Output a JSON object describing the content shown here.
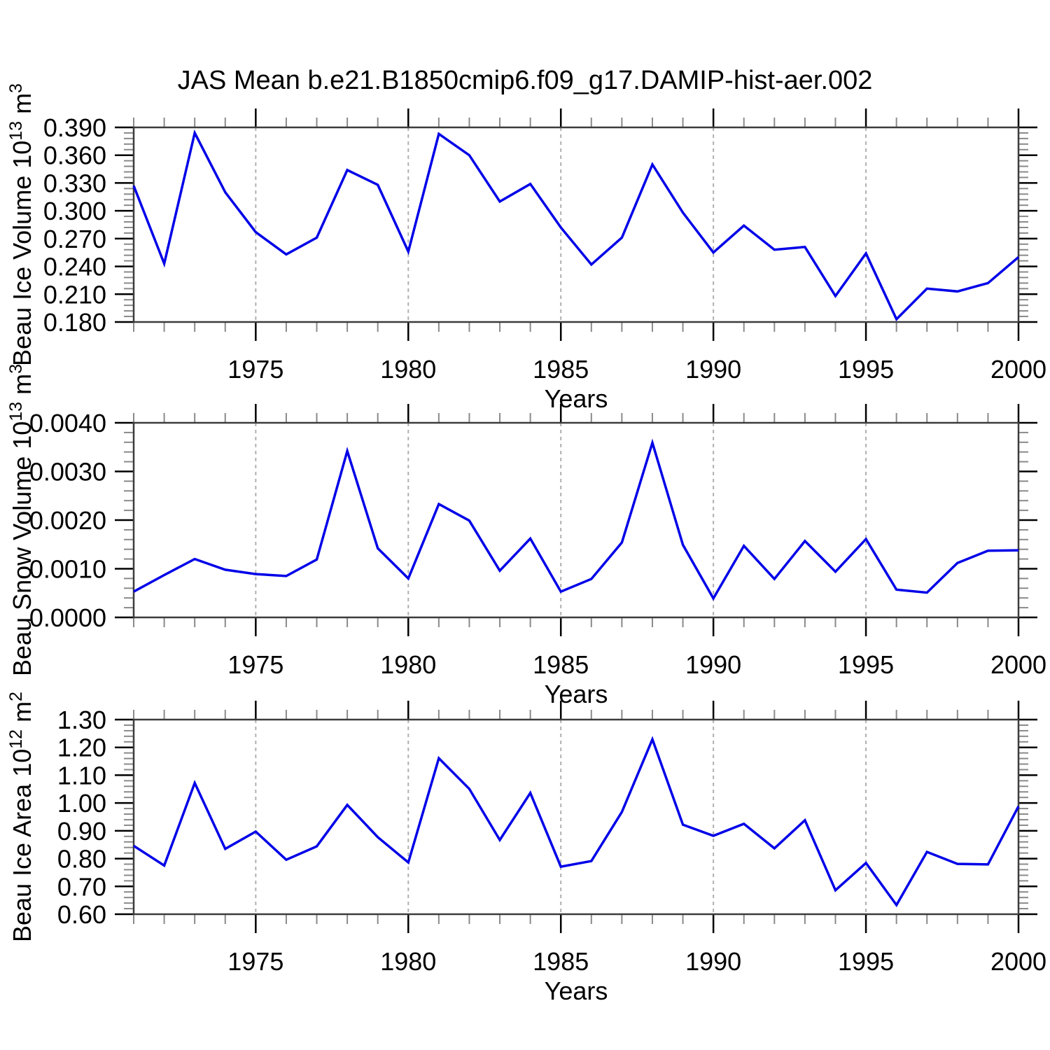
{
  "title": "JAS Mean b.e21.B1850cmip6.f09_g17.DAMIP-hist-aer.002",
  "styles": {
    "line_color": "#0000e8",
    "grid_color": "#b0b0b0",
    "frame_color": "#3c3c3c",
    "major_tick_color": "#000000",
    "minor_tick_color": "#8a8a8a",
    "text_color": "#000000",
    "background": "#ffffff"
  },
  "chart_data": [
    {
      "type": "line",
      "name": "beau-ice-volume",
      "title": "",
      "xlabel": "Years",
      "ylabel_parts": [
        {
          "t": "Beau Ice Volume 10"
        },
        {
          "t": "13",
          "sup": true
        },
        {
          "t": " m"
        },
        {
          "t": "3",
          "sup": true
        }
      ],
      "xlim": [
        1971,
        2000
      ],
      "ylim": [
        0.18,
        0.39
      ],
      "ytick_step": 0.03,
      "yminor_step": 0.006,
      "ytick_decimals": 3,
      "xticks": [
        1975,
        1980,
        1985,
        1990,
        1995,
        2000
      ],
      "xminor_step": 1,
      "grid_xs": [
        1975,
        1980,
        1985,
        1990,
        1995
      ],
      "x": [
        1971,
        1972,
        1973,
        1974,
        1975,
        1976,
        1977,
        1978,
        1979,
        1980,
        1981,
        1982,
        1983,
        1984,
        1985,
        1986,
        1987,
        1988,
        1989,
        1990,
        1991,
        1992,
        1993,
        1994,
        1995,
        1996,
        1997,
        1998,
        1999,
        2000
      ],
      "values": [
        0.327,
        0.243,
        0.384,
        0.32,
        0.277,
        0.253,
        0.271,
        0.344,
        0.328,
        0.256,
        0.383,
        0.36,
        0.31,
        0.329,
        0.282,
        0.242,
        0.271,
        0.35,
        0.298,
        0.255,
        0.284,
        0.258,
        0.261,
        0.208,
        0.254,
        0.183,
        0.216,
        0.213,
        0.222,
        0.25
      ]
    },
    {
      "type": "line",
      "name": "beau-snow-volume",
      "title": "",
      "xlabel": "Years",
      "ylabel_parts": [
        {
          "t": "Beau Snow Volume 10"
        },
        {
          "t": "13",
          "sup": true
        },
        {
          "t": " m"
        },
        {
          "t": "3",
          "sup": true
        }
      ],
      "xlim": [
        1971,
        2000
      ],
      "ylim": [
        0.0,
        0.004
      ],
      "ytick_step": 0.001,
      "yminor_step": 0.0002,
      "ytick_decimals": 4,
      "xticks": [
        1975,
        1980,
        1985,
        1990,
        1995,
        2000
      ],
      "xminor_step": 1,
      "grid_xs": [
        1975,
        1980,
        1985,
        1990,
        1995
      ],
      "x": [
        1971,
        1972,
        1973,
        1974,
        1975,
        1976,
        1977,
        1978,
        1979,
        1980,
        1981,
        1982,
        1983,
        1984,
        1985,
        1986,
        1987,
        1988,
        1989,
        1990,
        1991,
        1992,
        1993,
        1994,
        1995,
        1996,
        1997,
        1998,
        1999,
        2000
      ],
      "values": [
        0.00053,
        0.00087,
        0.0012,
        0.00098,
        0.00089,
        0.00085,
        0.00119,
        0.00342,
        0.00142,
        0.0008,
        0.00233,
        0.00199,
        0.00096,
        0.00162,
        0.00053,
        0.00079,
        0.00154,
        0.00359,
        0.00149,
        0.00039,
        0.00147,
        0.00079,
        0.00157,
        0.00094,
        0.00161,
        0.00057,
        0.00051,
        0.00112,
        0.00137,
        0.00138
      ]
    },
    {
      "type": "line",
      "name": "beau-ice-area",
      "title": "",
      "xlabel": "Years",
      "ylabel_parts": [
        {
          "t": "Beau Ice Area 10"
        },
        {
          "t": "12",
          "sup": true
        },
        {
          "t": " m"
        },
        {
          "t": "2",
          "sup": true
        }
      ],
      "xlim": [
        1971,
        2000
      ],
      "ylim": [
        0.6,
        1.3
      ],
      "ytick_step": 0.1,
      "yminor_step": 0.02,
      "ytick_decimals": 2,
      "xticks": [
        1975,
        1980,
        1985,
        1990,
        1995,
        2000
      ],
      "xminor_step": 1,
      "grid_xs": [
        1975,
        1980,
        1985,
        1990,
        1995
      ],
      "x": [
        1971,
        1972,
        1973,
        1974,
        1975,
        1976,
        1977,
        1978,
        1979,
        1980,
        1981,
        1982,
        1983,
        1984,
        1985,
        1986,
        1987,
        1988,
        1989,
        1990,
        1991,
        1992,
        1993,
        1994,
        1995,
        1996,
        1997,
        1998,
        1999,
        2000
      ],
      "values": [
        0.846,
        0.775,
        1.072,
        0.835,
        0.897,
        0.796,
        0.844,
        0.993,
        0.877,
        0.786,
        1.161,
        1.051,
        0.867,
        1.036,
        0.771,
        0.791,
        0.968,
        1.229,
        0.922,
        0.882,
        0.925,
        0.837,
        0.938,
        0.686,
        0.784,
        0.633,
        0.824,
        0.781,
        0.779,
        0.988
      ]
    }
  ]
}
